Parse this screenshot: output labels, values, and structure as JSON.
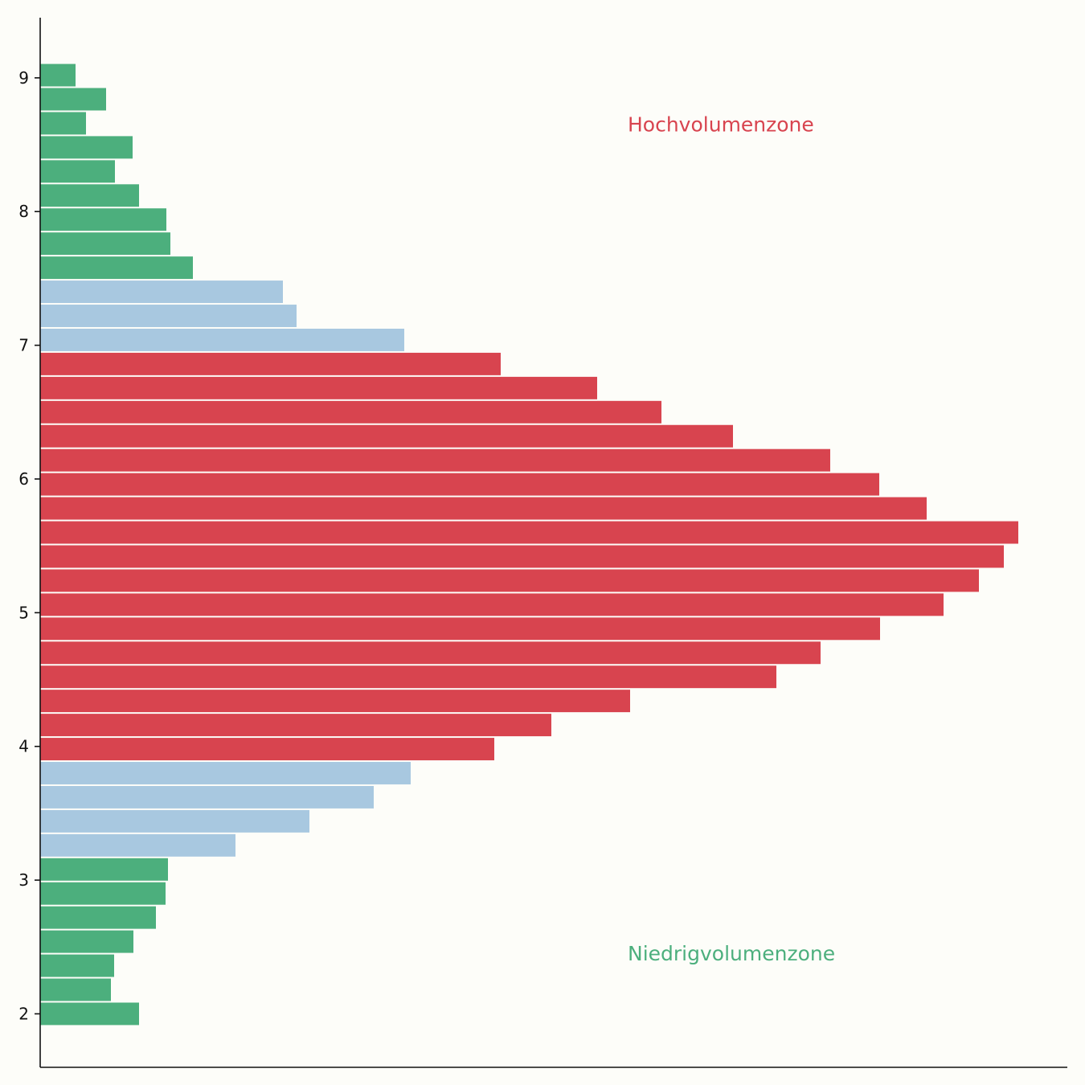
{
  "chart_data": {
    "type": "bar",
    "orientation": "horizontal",
    "title": "",
    "xlabel": "",
    "ylabel": "",
    "ylim": [
      1.6,
      9.45
    ],
    "xlim": [
      0,
      1278
    ],
    "yticks": [
      2,
      3,
      4,
      5,
      6,
      7,
      8,
      9
    ],
    "bin_width": 0.18,
    "bars": [
      {
        "y": 2.0,
        "value": 123,
        "zone": "low"
      },
      {
        "y": 2.18,
        "value": 88,
        "zone": "low"
      },
      {
        "y": 2.36,
        "value": 92,
        "zone": "low"
      },
      {
        "y": 2.54,
        "value": 116,
        "zone": "low"
      },
      {
        "y": 2.72,
        "value": 144,
        "zone": "low"
      },
      {
        "y": 2.9,
        "value": 156,
        "zone": "low"
      },
      {
        "y": 3.08,
        "value": 159,
        "zone": "low"
      },
      {
        "y": 3.26,
        "value": 243,
        "zone": "value"
      },
      {
        "y": 3.44,
        "value": 335,
        "zone": "value"
      },
      {
        "y": 3.62,
        "value": 415,
        "zone": "value"
      },
      {
        "y": 3.8,
        "value": 461,
        "zone": "value"
      },
      {
        "y": 3.98,
        "value": 565,
        "zone": "high"
      },
      {
        "y": 4.16,
        "value": 636,
        "zone": "high"
      },
      {
        "y": 4.34,
        "value": 734,
        "zone": "high"
      },
      {
        "y": 4.52,
        "value": 916,
        "zone": "high"
      },
      {
        "y": 4.7,
        "value": 971,
        "zone": "high"
      },
      {
        "y": 4.88,
        "value": 1045,
        "zone": "high"
      },
      {
        "y": 5.06,
        "value": 1124,
        "zone": "high"
      },
      {
        "y": 5.24,
        "value": 1168,
        "zone": "high"
      },
      {
        "y": 5.42,
        "value": 1199,
        "zone": "high"
      },
      {
        "y": 5.6,
        "value": 1217,
        "zone": "high"
      },
      {
        "y": 5.78,
        "value": 1103,
        "zone": "high"
      },
      {
        "y": 5.96,
        "value": 1044,
        "zone": "high"
      },
      {
        "y": 6.14,
        "value": 983,
        "zone": "high"
      },
      {
        "y": 6.32,
        "value": 862,
        "zone": "high"
      },
      {
        "y": 6.5,
        "value": 773,
        "zone": "high"
      },
      {
        "y": 6.68,
        "value": 693,
        "zone": "high"
      },
      {
        "y": 6.86,
        "value": 573,
        "zone": "high"
      },
      {
        "y": 7.04,
        "value": 453,
        "zone": "value"
      },
      {
        "y": 7.22,
        "value": 319,
        "zone": "value"
      },
      {
        "y": 7.4,
        "value": 302,
        "zone": "value"
      },
      {
        "y": 7.58,
        "value": 190,
        "zone": "low"
      },
      {
        "y": 7.76,
        "value": 162,
        "zone": "low"
      },
      {
        "y": 7.94,
        "value": 157,
        "zone": "low"
      },
      {
        "y": 8.12,
        "value": 123,
        "zone": "low"
      },
      {
        "y": 8.3,
        "value": 93,
        "zone": "low"
      },
      {
        "y": 8.48,
        "value": 115,
        "zone": "low"
      },
      {
        "y": 8.66,
        "value": 57,
        "zone": "low"
      },
      {
        "y": 8.84,
        "value": 82,
        "zone": "low"
      },
      {
        "y": 9.02,
        "value": 44,
        "zone": "low"
      }
    ],
    "zone_colors": {
      "high": "#d8444f",
      "value": "#a8c8e0",
      "low": "#4caf7d"
    },
    "annotations": [
      {
        "text": "Hochvolumenzone",
        "zone": "high",
        "x": 731,
        "y": 8.65
      },
      {
        "text": "Niedrigvolumenzone",
        "zone": "low",
        "x": 731,
        "y": 2.45
      }
    ],
    "legend": "none",
    "grid": false
  }
}
